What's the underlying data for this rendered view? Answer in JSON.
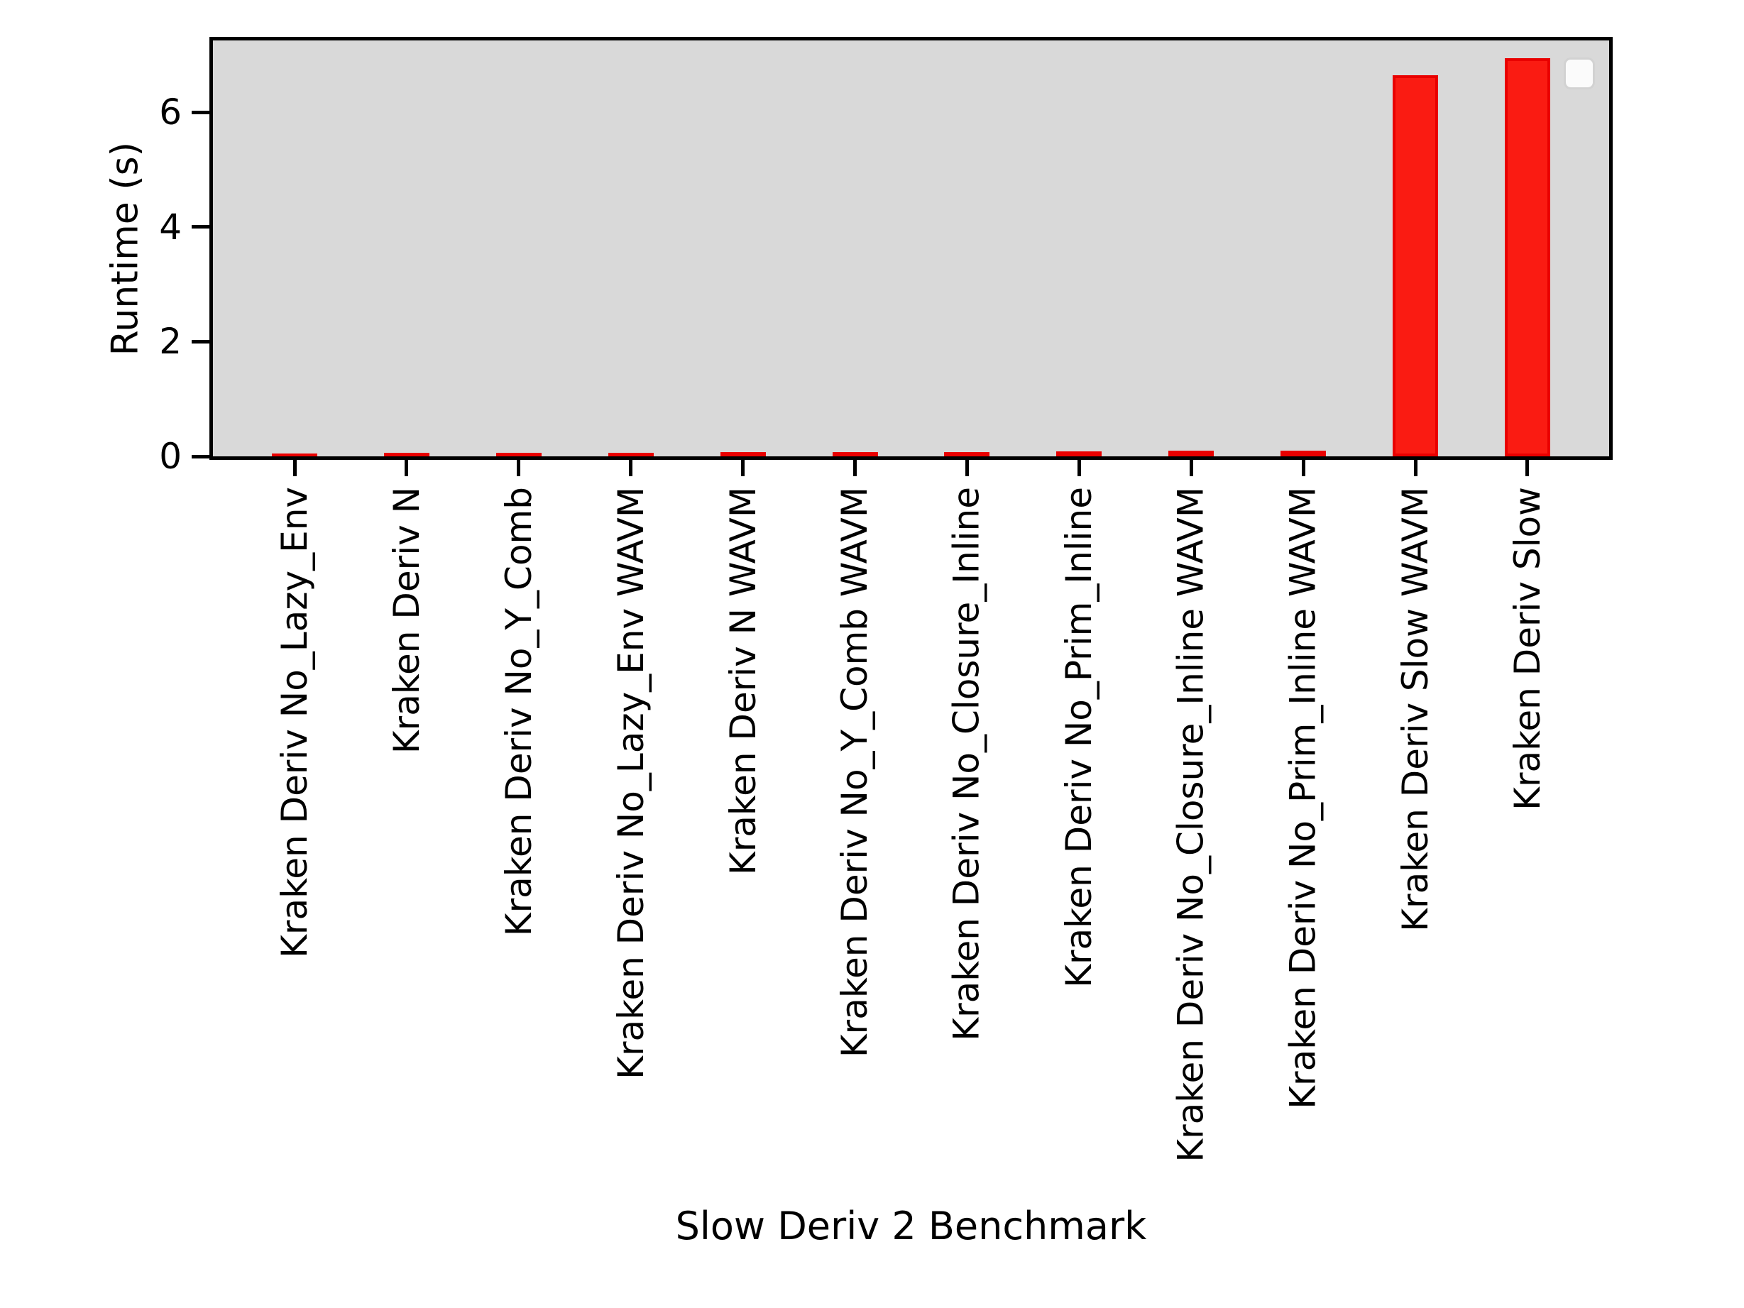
{
  "chart_data": {
    "type": "bar",
    "title": "",
    "xlabel": "Slow Deriv 2 Benchmark",
    "ylabel": "Runtime (s)",
    "categories": [
      "Kraken Deriv No_Lazy_Env",
      "Kraken Deriv N",
      "Kraken Deriv No_Y_Comb",
      "Kraken Deriv No_Lazy_Env WAVM",
      "Kraken Deriv N WAVM",
      "Kraken Deriv No_Y_Comb WAVM",
      "Kraken Deriv No_Closure_Inline",
      "Kraken Deriv No_Prim_Inline",
      "Kraken Deriv No_Closure_Inline WAVM",
      "Kraken Deriv No_Prim_Inline WAVM",
      "Kraken Deriv Slow WAVM",
      "Kraken Deriv Slow"
    ],
    "values": [
      0.05,
      0.066,
      0.065,
      0.066,
      0.07,
      0.074,
      0.07,
      0.083,
      0.099,
      0.099,
      6.64,
      6.94
    ],
    "yticks": [
      0,
      2,
      4,
      6
    ],
    "ylim": [
      0,
      7.25
    ],
    "grid": false,
    "legend": "empty rounded box, upper right",
    "colors": {
      "bar_fill": "#fa1b12",
      "bar_edge": "#e90000",
      "plot_background": "#d9d9d9",
      "figure_background": "#ffffff",
      "axis_spine": "#000000",
      "text": "#000000",
      "legend_fill": "#fbfbfb",
      "legend_edge": "#d2d2d2"
    }
  }
}
